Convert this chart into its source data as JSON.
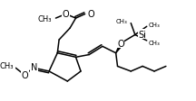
{
  "bg_color": "#ffffff",
  "bond_color": "#000000",
  "line_width": 1.1,
  "font_size": 5.5,
  "figsize": [
    2.16,
    1.13
  ],
  "dpi": 100,
  "xlim": [
    0,
    216
  ],
  "ylim": [
    0,
    113
  ]
}
